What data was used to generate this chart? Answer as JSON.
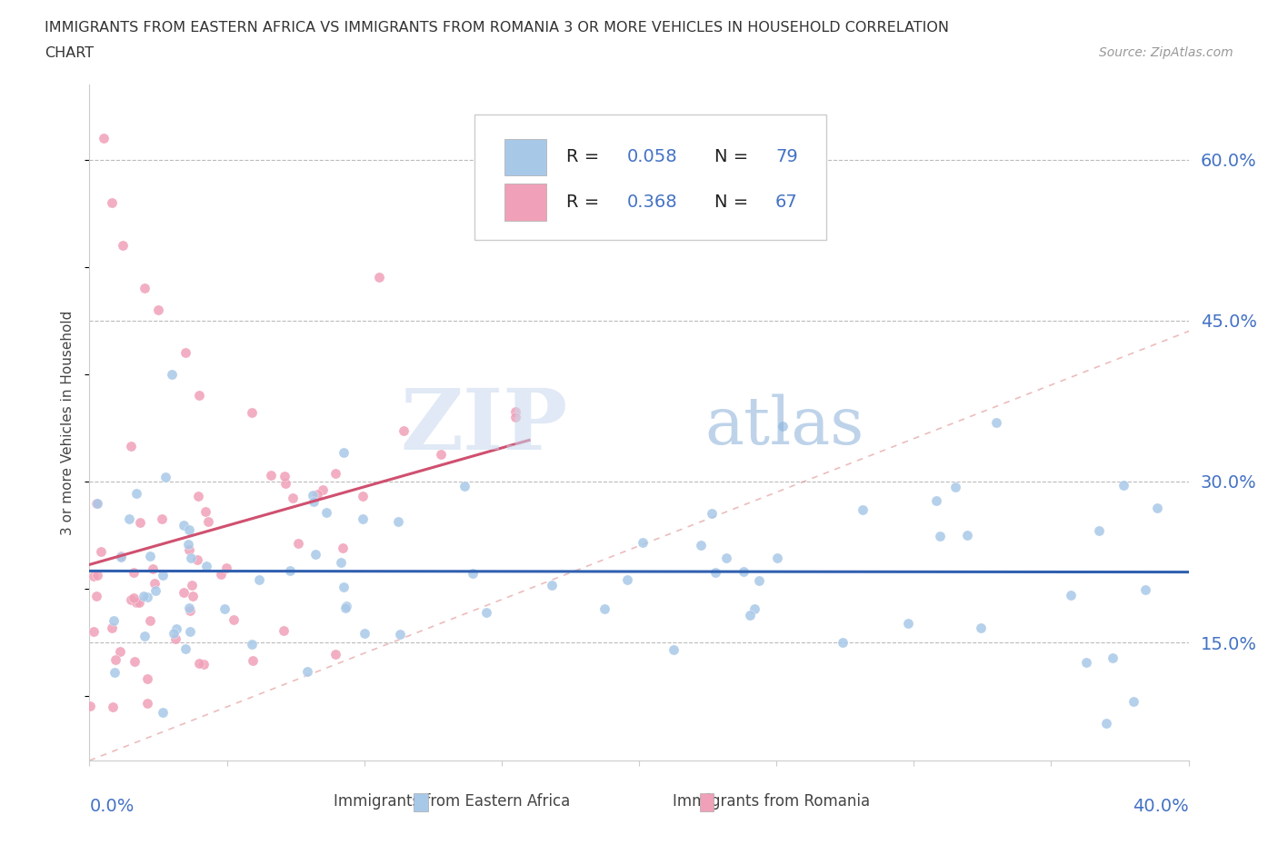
{
  "title_line1": "IMMIGRANTS FROM EASTERN AFRICA VS IMMIGRANTS FROM ROMANIA 3 OR MORE VEHICLES IN HOUSEHOLD CORRELATION",
  "title_line2": "CHART",
  "source_text": "Source: ZipAtlas.com",
  "ylabel_label": "3 or more Vehicles in Household",
  "ytick_labels": [
    "15.0%",
    "30.0%",
    "45.0%",
    "60.0%"
  ],
  "ytick_vals": [
    0.15,
    0.3,
    0.45,
    0.6
  ],
  "xlim": [
    0.0,
    0.4
  ],
  "ylim": [
    0.04,
    0.67
  ],
  "color_blue": "#a8c8e8",
  "color_pink": "#f0a0b8",
  "color_blue_line": "#3060b0",
  "color_pink_line": "#d05070",
  "color_blue_text": "#4472c4",
  "watermark_text": "ZIPatlas",
  "legend_label_blue": "Immigrants from Eastern Africa",
  "legend_label_pink": "Immigrants from Romania",
  "R1": 0.058,
  "N1": 79,
  "R2": 0.368,
  "N2": 67
}
